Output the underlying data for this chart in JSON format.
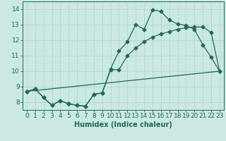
{
  "xlabel": "Humidex (Indice chaleur)",
  "background_color": "#cce8e4",
  "grid_color": "#aad4d0",
  "line_color": "#1a6b5a",
  "xlim": [
    -0.5,
    23.5
  ],
  "ylim": [
    7.5,
    14.5
  ],
  "xticks": [
    0,
    1,
    2,
    3,
    4,
    5,
    6,
    7,
    8,
    9,
    10,
    11,
    12,
    13,
    14,
    15,
    16,
    17,
    18,
    19,
    20,
    21,
    22,
    23
  ],
  "yticks": [
    8,
    9,
    10,
    11,
    12,
    13,
    14
  ],
  "line1_x": [
    0,
    1,
    2,
    3,
    4,
    5,
    6,
    7,
    8,
    9,
    10,
    11,
    12,
    13,
    14,
    15,
    16,
    17,
    18,
    19,
    20,
    21,
    22,
    23
  ],
  "line1_y": [
    8.7,
    8.85,
    8.3,
    7.8,
    8.1,
    7.9,
    7.8,
    7.75,
    8.5,
    8.6,
    10.15,
    11.3,
    11.9,
    13.0,
    12.7,
    13.95,
    13.85,
    13.3,
    13.05,
    12.95,
    12.7,
    11.7,
    10.9,
    10.0
  ],
  "line2_x": [
    0,
    1,
    2,
    3,
    4,
    5,
    6,
    7,
    8,
    9,
    10,
    11,
    12,
    13,
    14,
    15,
    16,
    17,
    18,
    19,
    20,
    21,
    22,
    23
  ],
  "line2_y": [
    8.7,
    8.85,
    8.3,
    7.8,
    8.1,
    7.9,
    7.8,
    7.75,
    8.5,
    8.6,
    10.1,
    10.1,
    11.0,
    11.5,
    11.9,
    12.2,
    12.4,
    12.55,
    12.7,
    12.8,
    12.85,
    12.85,
    12.5,
    10.0
  ],
  "line3_x": [
    0,
    23
  ],
  "line3_y": [
    8.7,
    10.0
  ],
  "marker_size": 2.5,
  "linewidth": 0.9,
  "xlabel_fontsize": 7,
  "tick_fontsize": 6.5
}
